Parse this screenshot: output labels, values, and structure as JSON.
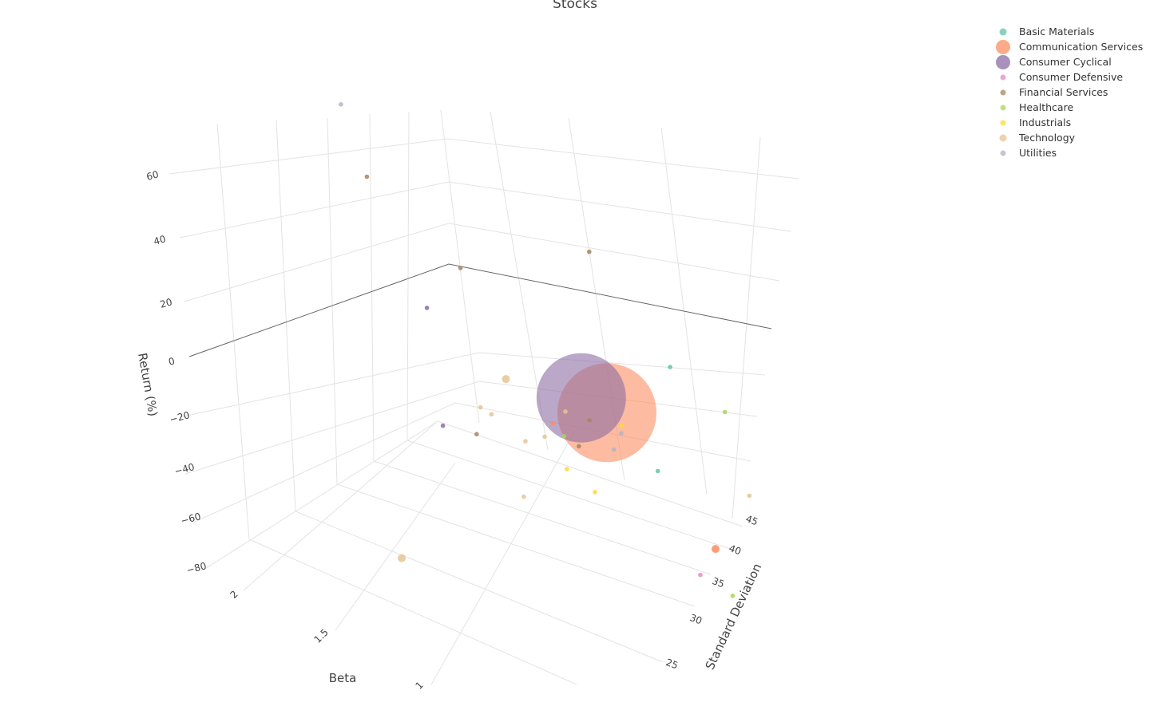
{
  "chart_data": {
    "type": "scatter3d",
    "title": "Stocks",
    "axes": {
      "x": {
        "title": "Standard Deviation",
        "ticks": [
          "25",
          "30",
          "35",
          "40",
          "45"
        ]
      },
      "y": {
        "title": "Beta",
        "ticks": [
          "1",
          "1.5",
          "2"
        ]
      },
      "z": {
        "title": "Return (%)",
        "ticks": [
          "60",
          "40",
          "20",
          "0",
          "−20",
          "−40",
          "−60",
          "−80"
        ]
      }
    },
    "legend_position": "top-right",
    "series": [
      {
        "name": "Basic Materials",
        "color": "#66c2a5",
        "points": [
          {
            "sd": 30.5,
            "beta": 0.62,
            "ret": 4.0,
            "cap": "small"
          },
          {
            "sd": 37.5,
            "beta": 0.65,
            "ret": 18.0,
            "cap": "small"
          }
        ]
      },
      {
        "name": "Communication Services",
        "color": "#fc8d62",
        "points": [
          {
            "sd": 30.0,
            "beta": 0.88,
            "ret": 16.0,
            "cap": "huge"
          },
          {
            "sd": 31.0,
            "beta": 1.28,
            "ret": -3.0,
            "cap": "small"
          },
          {
            "sd": 39.5,
            "beta": 0.6,
            "ret": -45.0,
            "cap": "medium"
          }
        ]
      },
      {
        "name": "Consumer Cyclical",
        "color": "#8e6ca4",
        "points": [
          {
            "sd": 30.5,
            "beta": 1.05,
            "ret": 14.0,
            "cap": "huge"
          },
          {
            "sd": 25.5,
            "beta": 1.82,
            "ret": 32.0,
            "cap": "small"
          },
          {
            "sd": 25.0,
            "beta": 1.82,
            "ret": -5.0,
            "cap": "small"
          }
        ]
      },
      {
        "name": "Consumer Defensive",
        "color": "#e78ac3",
        "points": [
          {
            "sd": 38.0,
            "beta": 0.68,
            "ret": -52.0,
            "cap": "small"
          }
        ]
      },
      {
        "name": "Financial Services",
        "color": "#a5855f",
        "points": [
          {
            "sd": 28.0,
            "beta": 1.7,
            "ret": -12.0,
            "cap": "small"
          },
          {
            "sd": 24.5,
            "beta": 2.05,
            "ret": 70.0,
            "cap": "small"
          },
          {
            "sd": 27.5,
            "beta": 1.62,
            "ret": 46.0,
            "cap": "small"
          },
          {
            "sd": 30.0,
            "beta": 1.1,
            "ret": -2.0,
            "cap": "small"
          },
          {
            "sd": 31.5,
            "beta": 1.05,
            "ret": 4.0,
            "cap": "small"
          },
          {
            "sd": 37.0,
            "beta": 1.05,
            "ret": 44.0,
            "cap": "small"
          }
        ]
      },
      {
        "name": "Healthcare",
        "color": "#a6d854",
        "points": [
          {
            "sd": 32.0,
            "beta": 1.25,
            "ret": -9.0,
            "cap": "small"
          },
          {
            "sd": 40.0,
            "beta": 0.55,
            "ret": -60.0,
            "cap": "small"
          },
          {
            "sd": 46.0,
            "beta": 0.6,
            "ret": -18.0,
            "cap": "small"
          }
        ]
      },
      {
        "name": "Industrials",
        "color": "#ffd92f",
        "points": [
          {
            "sd": 32.5,
            "beta": 1.28,
            "ret": -22.0,
            "cap": "small"
          },
          {
            "sd": 33.5,
            "beta": 1.15,
            "ret": -28.0,
            "cap": "small"
          },
          {
            "sd": 35.0,
            "beta": 0.95,
            "ret": -4.0,
            "cap": "small"
          }
        ]
      },
      {
        "name": "Technology",
        "color": "#e5c494",
        "points": [
          {
            "sd": 22.5,
            "beta": 2.15,
            "ret": -52.0,
            "cap": "medium"
          },
          {
            "sd": 28.0,
            "beta": 1.45,
            "ret": 14.0,
            "cap": "medium"
          },
          {
            "sd": 27.0,
            "beta": 1.55,
            "ret": 2.0,
            "cap": "small"
          },
          {
            "sd": 26.5,
            "beta": 1.6,
            "ret": 4.0,
            "cap": "small"
          },
          {
            "sd": 29.5,
            "beta": 1.3,
            "ret": -4.0,
            "cap": "small"
          },
          {
            "sd": 29.5,
            "beta": 1.5,
            "ret": -30.0,
            "cap": "small"
          },
          {
            "sd": 31.5,
            "beta": 1.2,
            "ret": 2.0,
            "cap": "small"
          },
          {
            "sd": 42.0,
            "beta": 0.4,
            "ret": -28.0,
            "cap": "small"
          },
          {
            "sd": 28.5,
            "beta": 1.4,
            "ret": -6.0,
            "cap": "small"
          }
        ]
      },
      {
        "name": "Utilities",
        "color": "#b3b3c3",
        "points": [
          {
            "sd": 23.0,
            "beta": 2.1,
            "ret": 96.0,
            "cap": "small"
          },
          {
            "sd": 33.0,
            "beta": 0.9,
            "ret": 0.5,
            "cap": "small"
          },
          {
            "sd": 32.5,
            "beta": 0.95,
            "ret": -5.0,
            "cap": "small"
          }
        ]
      }
    ],
    "legend_marker_size": [
      "medium",
      "huge",
      "huge",
      "small",
      "small",
      "small",
      "small",
      "medium",
      "small"
    ]
  }
}
